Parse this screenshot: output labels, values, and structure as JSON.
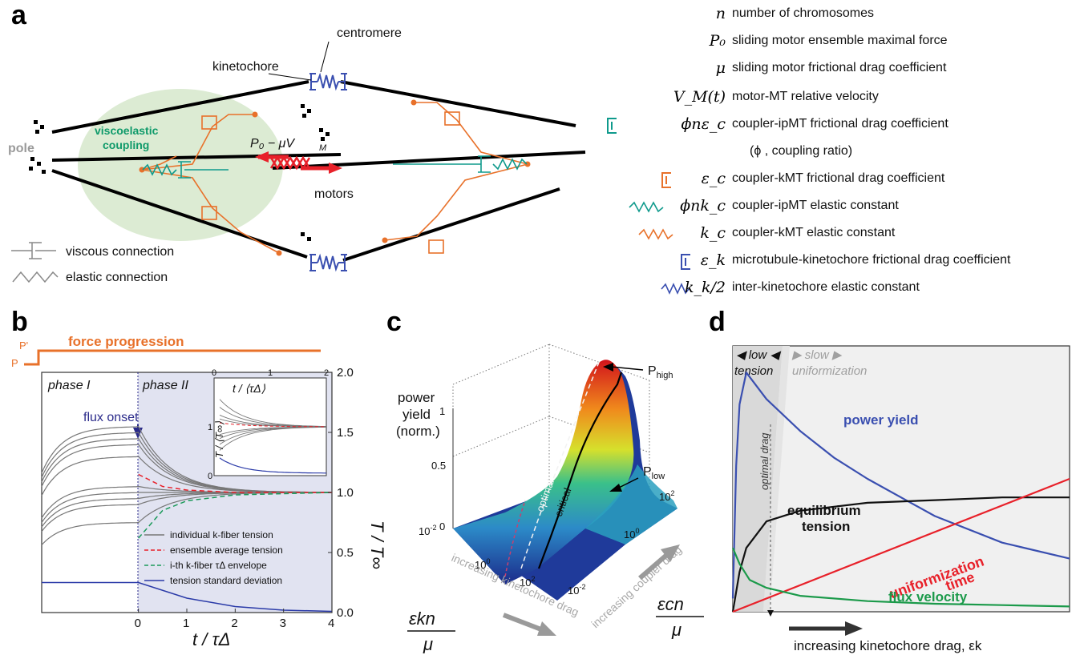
{
  "panels": {
    "a": "a",
    "b": "b",
    "c": "c",
    "d": "d"
  },
  "panel_a": {
    "labels": {
      "kinetochore": "kinetochore",
      "centromere": "centromere",
      "pole": "pole",
      "viscoelastic": "viscoelastic",
      "coupling": "coupling",
      "motor_force": "P₀ − μV",
      "motor_force_sub": "M",
      "motors": "motors"
    },
    "key": {
      "viscous": "viscous connection",
      "elastic": "elastic connection"
    },
    "colors": {
      "orange": "#e8712a",
      "teal": "#0f9a8c",
      "blue": "#3a4fb0",
      "green_zone": "#dcebd3",
      "red": "#e8212a"
    }
  },
  "legend": [
    {
      "sym": "n",
      "desc": "number of chromosomes"
    },
    {
      "sym": "P₀",
      "desc": "sliding motor ensemble maximal force"
    },
    {
      "sym": "μ",
      "desc": "sliding motor frictional drag coefficient"
    },
    {
      "sym": "V_M(t)",
      "desc": "motor-MT relative velocity"
    },
    {
      "sym": "ϕnε_c",
      "desc": "coupler-ipMT frictional drag coefficient"
    },
    {
      "sym": "",
      "desc": "(ϕ , coupling ratio)"
    },
    {
      "sym": "ε_c",
      "desc": "coupler-kMT frictional drag coefficient"
    },
    {
      "sym": "ϕnk_c",
      "desc": "coupler-ipMT elastic constant"
    },
    {
      "sym": "k_c",
      "desc": "coupler-kMT elastic constant"
    },
    {
      "sym": "ε_k",
      "desc": "microtubule-kinetochore frictional drag coefficient"
    },
    {
      "sym": "k_k/2",
      "desc": "inter-kinetochore elastic constant"
    }
  ],
  "panel_b": {
    "force_progression": "force progression",
    "p_prime": "P'",
    "p": "P",
    "phase1": "phase I",
    "phase2": "phase II",
    "flux_onset": "flux onset",
    "ylabel": "T / T∞",
    "xlabel": "t / τΔ",
    "inset_xlabel": "t / ⟨τΔ⟩",
    "inset_ylabel": "T / ⟨T∞⟩",
    "legend": [
      "individual k-fiber tension",
      "ensemble average tension",
      "i-th k-fiber τΔ envelope",
      "tension standard deviation"
    ]
  },
  "panel_c": {
    "zlabel": [
      "power",
      "yield",
      "(norm.)"
    ],
    "p_high": "Phigh",
    "p_low": "Plow",
    "optimal": "optimal",
    "critical": "critical",
    "x_arrow": "increasing kinetochore drag",
    "y_arrow": "increasing coupler drag",
    "x_var_num": "εkn",
    "x_var_den": "μ",
    "y_var_num": "εcn",
    "y_var_den": "μ"
  },
  "panel_d": {
    "low_tension": [
      "low",
      "tension"
    ],
    "slow_uniformization": [
      "slow",
      "uniformization"
    ],
    "optimal_drag": "optimal drag",
    "power_yield": "power yield",
    "equilibrium_tension": [
      "equilibrium",
      "tension"
    ],
    "uniformization_time": [
      "uniformization",
      "time"
    ],
    "flux_velocity": "flux velocity",
    "xlabel": "increasing kinetochore drag, εk"
  },
  "chart_data": [
    {
      "type": "line",
      "title": "",
      "xlabel": "t / τΔ",
      "ylabel": "T / T∞",
      "x_ticks": [
        0,
        1,
        2,
        3,
        4
      ],
      "y_ticks": [
        0.0,
        0.5,
        1.0,
        1.5,
        2.0
      ],
      "xlim": [
        -2.0,
        4
      ],
      "ylim": [
        0,
        2.0
      ],
      "series": [
        {
          "name": "individual k-fiber tension",
          "note": "several gray curves, plateaus before flux onset then converge to 1.0",
          "plateaus": [
            1.55,
            1.5,
            1.45,
            1.4,
            1.3,
            1.05,
            1.0,
            0.95,
            0.9,
            0.75
          ]
        },
        {
          "name": "ensemble average tension",
          "x": [
            0,
            0.5,
            1,
            2,
            4
          ],
          "y": [
            1.15,
            1.05,
            1.02,
            1.0,
            1.0
          ]
        },
        {
          "name": "i-th k-fiber τΔ envelope",
          "x": [
            0,
            0.5,
            1,
            2,
            4
          ],
          "y": [
            0.62,
            0.85,
            0.93,
            0.98,
            1.0
          ]
        },
        {
          "name": "tension standard deviation",
          "x": [
            -2,
            0,
            1,
            2,
            3,
            4
          ],
          "y": [
            0.25,
            0.25,
            0.12,
            0.05,
            0.02,
            0.01
          ]
        }
      ]
    },
    {
      "type": "line",
      "title": "",
      "xlabel": "increasing kinetochore drag, εk",
      "ylabel": "",
      "series": [
        {
          "name": "power yield",
          "x": [
            0,
            0.01,
            0.02,
            0.04,
            0.1,
            0.2,
            0.3,
            0.4,
            0.6,
            0.8,
            1.0
          ],
          "y": [
            0.05,
            0.55,
            0.78,
            0.9,
            0.8,
            0.68,
            0.58,
            0.5,
            0.36,
            0.26,
            0.2
          ]
        },
        {
          "name": "equilibrium tension",
          "x": [
            0,
            0.02,
            0.04,
            0.1,
            0.2,
            0.4,
            0.6,
            0.8,
            1.0
          ],
          "y": [
            0.0,
            0.15,
            0.24,
            0.34,
            0.38,
            0.41,
            0.42,
            0.43,
            0.43
          ]
        },
        {
          "name": "uniformization time",
          "x": [
            0,
            1.0
          ],
          "y": [
            0.0,
            0.5
          ]
        },
        {
          "name": "flux velocity",
          "x": [
            0,
            0.02,
            0.05,
            0.1,
            0.2,
            0.4,
            0.6,
            0.8,
            1.0
          ],
          "y": [
            0.24,
            0.18,
            0.12,
            0.09,
            0.06,
            0.04,
            0.03,
            0.025,
            0.02
          ]
        }
      ]
    }
  ]
}
